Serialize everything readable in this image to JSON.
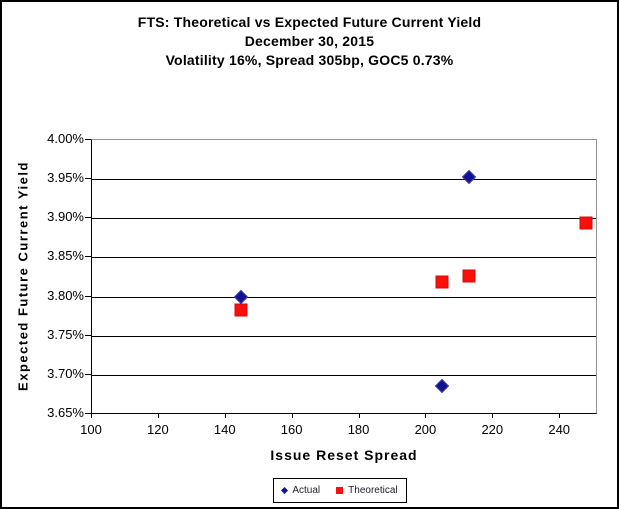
{
  "title": {
    "line1": "FTS: Theoretical vs Expected Future Current Yield",
    "line2": "December 30, 2015",
    "line3": "Volatility 16%, Spread 305bp, GOC5 0.73%"
  },
  "colors": {
    "actual": "#131392",
    "actual_edge": "#3a3ab0",
    "theoretical": "#fa0f0c",
    "theoretical_edge": "#d40b08",
    "gridline": "#000000",
    "plot_border": "#949494",
    "axis": "#000000"
  },
  "chart_data": {
    "type": "scatter",
    "title": "FTS: Theoretical vs Expected Future Current Yield",
    "subtitle1": "December 30, 2015",
    "subtitle2": "Volatility 16%, Spread 305bp, GOC5 0.73%",
    "xlabel": "Issue Reset Spread",
    "ylabel": "Expected Future Current Yield",
    "xlim": [
      100,
      251
    ],
    "ylim": [
      3.65,
      4.0
    ],
    "x_ticks": [
      100,
      120,
      140,
      160,
      180,
      200,
      220,
      240
    ],
    "y_ticks": [
      4.0,
      3.95,
      3.9,
      3.85,
      3.8,
      3.75,
      3.7,
      3.65
    ],
    "y_tick_format": "percent_2dp",
    "grid": "horizontal",
    "legend_position": "bottom-center",
    "series": [
      {
        "name": "Theoretical",
        "marker": "square",
        "color": "#fa0f0c",
        "points": [
          [
            145,
            3.781
          ],
          [
            205,
            3.817
          ],
          [
            213,
            3.825
          ],
          [
            248,
            3.893
          ]
        ]
      },
      {
        "name": "Actual",
        "marker": "diamond",
        "color": "#131392",
        "points": [
          [
            145,
            3.798
          ],
          [
            205,
            3.685
          ],
          [
            213,
            3.951
          ]
        ]
      }
    ]
  },
  "legend": {
    "actual_label": "Actual",
    "theoretical_label": "Theoretical"
  }
}
